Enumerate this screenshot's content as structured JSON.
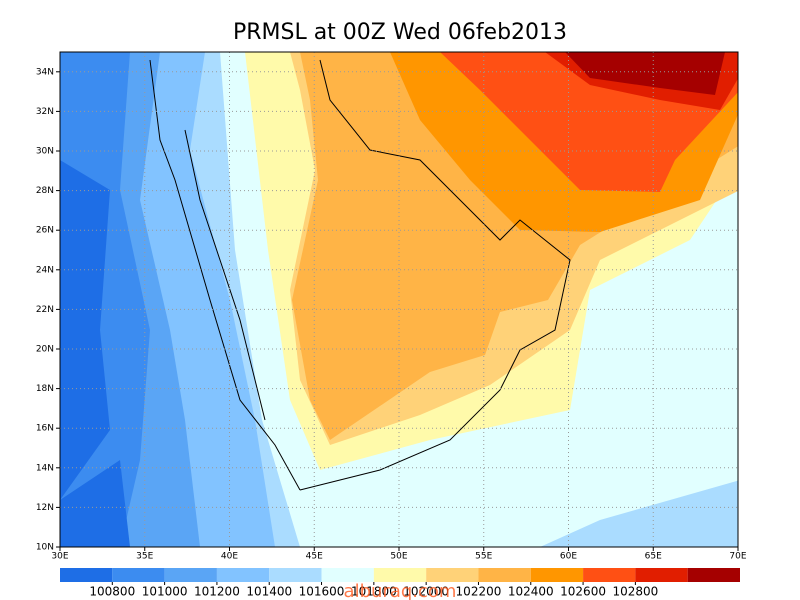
{
  "chart_data": {
    "type": "map",
    "title": "PRMSL at 00Z Wed 06feb2013",
    "xlim": [
      30,
      70
    ],
    "ylim": [
      10,
      35
    ],
    "xticks": [
      {
        "value": 30,
        "label": "30E"
      },
      {
        "value": 35,
        "label": "35E"
      },
      {
        "value": 40,
        "label": "40E"
      },
      {
        "value": 45,
        "label": "45E"
      },
      {
        "value": 50,
        "label": "50E"
      },
      {
        "value": 55,
        "label": "55E"
      },
      {
        "value": 60,
        "label": "60E"
      },
      {
        "value": 65,
        "label": "65E"
      },
      {
        "value": 70,
        "label": "70E"
      }
    ],
    "yticks": [
      {
        "value": 10,
        "label": "10N"
      },
      {
        "value": 12,
        "label": "12N"
      },
      {
        "value": 14,
        "label": "14N"
      },
      {
        "value": 16,
        "label": "16N"
      },
      {
        "value": 18,
        "label": "18N"
      },
      {
        "value": 20,
        "label": "20N"
      },
      {
        "value": 22,
        "label": "22N"
      },
      {
        "value": 24,
        "label": "24N"
      },
      {
        "value": 26,
        "label": "26N"
      },
      {
        "value": 28,
        "label": "28N"
      },
      {
        "value": 30,
        "label": "30N"
      },
      {
        "value": 32,
        "label": "32N"
      },
      {
        "value": 34,
        "label": "34N"
      }
    ],
    "grid": true,
    "colorbar": {
      "levels": [
        100800,
        101000,
        101200,
        101400,
        101600,
        101800,
        102000,
        102200,
        102400,
        102600,
        102800
      ],
      "colors": [
        "#1e6ee6",
        "#3c8cf0",
        "#5aa5f5",
        "#82c3ff",
        "#aadcff",
        "#e1ffff",
        "#fffaaa",
        "#ffd278",
        "#ffb446",
        "#ff9600",
        "#ff5014",
        "#e11e00",
        "#a50000"
      ]
    }
  },
  "watermark": "alburaq.com"
}
